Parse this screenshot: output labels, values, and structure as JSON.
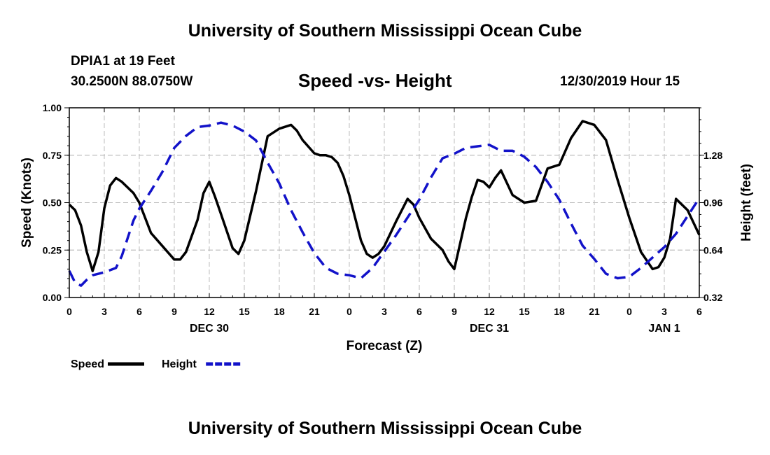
{
  "header": {
    "title": "University of Southern Mississippi Ocean Cube",
    "station": "DPIA1 at 19 Feet",
    "location": "30.2500N 88.0750W",
    "chart_title": "Speed -vs- Height",
    "timestamp": "12/30/2019 Hour 15"
  },
  "footer": {
    "title": "University of Southern Mississippi Ocean Cube"
  },
  "chart_data": {
    "type": "line",
    "title": "Speed -vs- Height",
    "xlabel": "Forecast (Z)",
    "ylabel": "Speed (Knots)",
    "y2label": "Height (feet)",
    "xlim": [
      0,
      54
    ],
    "ylim": [
      0,
      1
    ],
    "y2lim": [
      0.32,
      1.6
    ],
    "grid": true,
    "x_tick_values": [
      0,
      3,
      6,
      9,
      12,
      15,
      18,
      21,
      24,
      27,
      30,
      33,
      36,
      39,
      42,
      45,
      48,
      51,
      54
    ],
    "x_tick_labels": [
      "0",
      "3",
      "6",
      "9",
      "12",
      "15",
      "18",
      "21",
      "0",
      "3",
      "6",
      "9",
      "12",
      "15",
      "18",
      "21",
      "0",
      "3",
      "6"
    ],
    "date_labels": [
      {
        "x": 12,
        "label": "DEC 30"
      },
      {
        "x": 36,
        "label": "DEC 31"
      },
      {
        "x": 51,
        "label": "JAN 1"
      }
    ],
    "y_ticks": [
      {
        "value": 0,
        "label": "0.00"
      },
      {
        "value": 0.25,
        "label": "0.25"
      },
      {
        "value": 0.5,
        "label": "0.50"
      },
      {
        "value": 0.75,
        "label": "0.75"
      },
      {
        "value": 1,
        "label": "1.00"
      }
    ],
    "y2_ticks": [
      {
        "value": 0.32,
        "label": "0.32"
      },
      {
        "value": 0.64,
        "label": "0.64"
      },
      {
        "value": 0.96,
        "label": "0.96"
      },
      {
        "value": 1.28,
        "label": "1.28"
      }
    ],
    "series": [
      {
        "name": "Speed",
        "axis": "left",
        "color": "#000000",
        "style": "solid",
        "x": [
          0,
          0.5,
          1,
          1.5,
          2,
          2.5,
          3,
          3.5,
          4,
          4.5,
          5,
          5.5,
          6,
          7,
          8,
          9,
          9.5,
          10,
          11,
          11.5,
          12,
          12.5,
          13,
          14,
          14.5,
          15,
          16,
          17,
          18,
          19,
          19.5,
          20,
          21,
          21.5,
          22,
          22.5,
          23,
          23.5,
          24,
          25,
          25.5,
          26,
          26.5,
          27,
          28,
          29,
          29.5,
          30,
          31,
          32,
          32.5,
          33,
          34,
          34.5,
          35,
          35.5,
          36,
          36.5,
          37,
          38,
          39,
          40,
          41,
          42,
          43,
          44,
          45,
          46,
          47,
          48,
          49,
          50,
          50.5,
          51,
          51.5,
          52,
          53,
          54
        ],
        "values": [
          0.49,
          0.46,
          0.38,
          0.24,
          0.14,
          0.24,
          0.47,
          0.59,
          0.63,
          0.61,
          0.58,
          0.55,
          0.5,
          0.34,
          0.27,
          0.2,
          0.2,
          0.24,
          0.41,
          0.55,
          0.61,
          0.53,
          0.44,
          0.26,
          0.23,
          0.3,
          0.56,
          0.85,
          0.89,
          0.91,
          0.88,
          0.83,
          0.76,
          0.75,
          0.75,
          0.74,
          0.71,
          0.64,
          0.54,
          0.3,
          0.23,
          0.21,
          0.23,
          0.27,
          0.4,
          0.52,
          0.49,
          0.42,
          0.31,
          0.25,
          0.19,
          0.15,
          0.42,
          0.53,
          0.62,
          0.61,
          0.58,
          0.63,
          0.67,
          0.54,
          0.5,
          0.51,
          0.68,
          0.7,
          0.84,
          0.93,
          0.91,
          0.83,
          0.62,
          0.42,
          0.24,
          0.15,
          0.16,
          0.21,
          0.31,
          0.52,
          0.46,
          0.33
        ]
      },
      {
        "name": "Height",
        "axis": "right",
        "color": "#1212c9",
        "style": "dashed",
        "x": [
          0,
          0.5,
          1,
          1.5,
          2,
          3,
          4,
          4.5,
          5,
          5.5,
          6,
          7,
          8,
          9,
          10,
          11,
          12,
          13,
          14,
          15,
          16,
          17,
          18,
          19,
          20,
          21,
          22,
          23,
          24,
          25,
          26,
          27,
          28,
          29,
          30,
          31,
          32,
          33,
          34,
          35,
          36,
          37,
          38,
          39,
          40,
          41,
          42,
          43,
          44,
          45,
          46,
          47,
          48,
          49,
          50,
          51,
          52,
          53,
          54
        ],
        "values": [
          0.5,
          0.42,
          0.4,
          0.44,
          0.47,
          0.49,
          0.52,
          0.6,
          0.72,
          0.84,
          0.92,
          1.04,
          1.17,
          1.33,
          1.41,
          1.47,
          1.48,
          1.5,
          1.48,
          1.44,
          1.38,
          1.23,
          1.09,
          0.91,
          0.76,
          0.62,
          0.52,
          0.48,
          0.47,
          0.45,
          0.52,
          0.63,
          0.74,
          0.86,
          0.98,
          1.13,
          1.26,
          1.29,
          1.33,
          1.34,
          1.35,
          1.31,
          1.31,
          1.27,
          1.2,
          1.1,
          0.98,
          0.82,
          0.67,
          0.58,
          0.48,
          0.45,
          0.46,
          0.52,
          0.59,
          0.66,
          0.75,
          0.87,
          0.99
        ]
      }
    ],
    "legend": [
      {
        "label": "Speed",
        "color": "#000000",
        "style": "solid"
      },
      {
        "label": "Height",
        "color": "#1212c9",
        "style": "dashed"
      }
    ],
    "legend_position": "bottom-left"
  }
}
